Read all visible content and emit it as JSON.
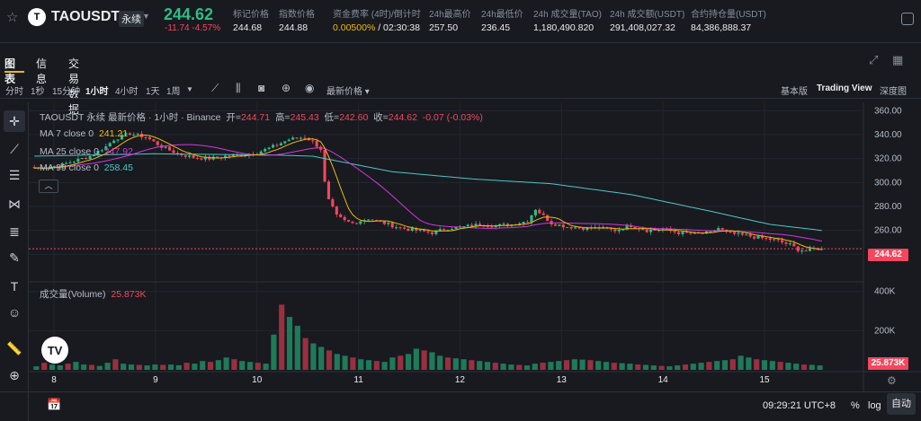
{
  "header": {
    "symbol": "TAOUSDT",
    "contract_type": "永续",
    "logo_letter": "T",
    "last_price": "244.62",
    "change": "-11.74",
    "change_pct": "-4.57%",
    "stats": [
      {
        "label": "标记价格",
        "value": "244.68"
      },
      {
        "label": "指数价格",
        "value": "244.88"
      },
      {
        "label": "资金费率 (4时)/倒计时",
        "value_a": "0.00500%",
        "value_b": " / 02:30:38"
      },
      {
        "label": "24h最高价",
        "value": "257.50"
      },
      {
        "label": "24h最低价",
        "value": "236.45"
      },
      {
        "label": "24h 成交量(TAO)",
        "value": "1,180,490.820"
      },
      {
        "label": "24h 成交额(USDT)",
        "value": "291,408,027.32"
      },
      {
        "label": "合约持仓量(USDT)",
        "value": "84,386,888.37"
      }
    ]
  },
  "tabs": [
    "图表",
    "信息",
    "交易数据"
  ],
  "toolbar": {
    "intervals": [
      "分时",
      "1秒",
      "15分钟",
      "1小时",
      "4小时",
      "1天",
      "1周"
    ],
    "active_interval": "1小时",
    "price_type": "最新价格",
    "views": [
      "基本版",
      "Trading View",
      "深度图"
    ],
    "active_view": "Trading View"
  },
  "legend": {
    "title": "TAOUSDT 永续 最新价格 · 1小时 · Binance",
    "open_label": "开=",
    "open": "244.71",
    "high_label": "高=",
    "high": "245.43",
    "low_label": "低=",
    "low": "242.60",
    "close_label": "收=",
    "close": "244.62",
    "change": "-0.07 (-0.03%)",
    "ma7_label": "MA 7 close 0",
    "ma7": "241.21",
    "ma25_label": "MA 25 close 0",
    "ma25": "247.92",
    "ma99_label": "MA 99 close 0",
    "ma99": "258.45",
    "volume_label": "成交量(Volume)",
    "volume": "25.873K"
  },
  "chart_data": {
    "type": "candlestick",
    "interval": "1小时",
    "x_ticks": [
      "8",
      "9",
      "10",
      "11",
      "12",
      "13",
      "14",
      "15"
    ],
    "price_ticks": [
      "360.00",
      "340.00",
      "320.00",
      "300.00",
      "280.00",
      "260.00",
      "240.00"
    ],
    "volume_ticks": [
      "400K",
      "200K"
    ],
    "ylim": [
      232,
      364
    ],
    "last_price_tag": "244.62",
    "last_volume_tag": "25.873K",
    "colors": {
      "up": "#2ebd85",
      "down": "#f6465d",
      "ma7": "#f0b90b",
      "ma25": "#d138dc",
      "ma99": "#4fc6c6"
    },
    "close_path": [
      [
        0,
        312
      ],
      [
        6,
        314
      ],
      [
        10,
        318
      ],
      [
        14,
        322
      ],
      [
        18,
        330
      ],
      [
        20,
        336
      ],
      [
        24,
        341
      ],
      [
        28,
        338
      ],
      [
        32,
        330
      ],
      [
        36,
        324
      ],
      [
        40,
        321
      ],
      [
        44,
        320
      ],
      [
        48,
        322
      ],
      [
        52,
        323
      ],
      [
        56,
        325
      ],
      [
        60,
        330
      ],
      [
        64,
        336
      ],
      [
        68,
        338
      ],
      [
        70,
        334
      ],
      [
        72,
        328
      ],
      [
        73,
        300
      ],
      [
        74,
        285
      ],
      [
        76,
        272
      ],
      [
        78,
        268
      ],
      [
        80,
        266
      ],
      [
        84,
        270
      ],
      [
        88,
        266
      ],
      [
        92,
        262
      ],
      [
        96,
        260
      ],
      [
        100,
        258
      ],
      [
        104,
        262
      ],
      [
        108,
        263
      ],
      [
        112,
        265
      ],
      [
        116,
        264
      ],
      [
        120,
        265
      ],
      [
        124,
        268
      ],
      [
        126,
        278
      ],
      [
        128,
        272
      ],
      [
        130,
        266
      ],
      [
        134,
        263
      ],
      [
        138,
        262
      ],
      [
        142,
        262
      ],
      [
        146,
        260
      ],
      [
        150,
        264
      ],
      [
        154,
        260
      ],
      [
        158,
        261
      ],
      [
        162,
        258
      ],
      [
        166,
        257
      ],
      [
        170,
        258
      ],
      [
        172,
        262
      ],
      [
        174,
        258
      ],
      [
        178,
        256
      ],
      [
        182,
        254
      ],
      [
        186,
        252
      ],
      [
        190,
        248
      ],
      [
        192,
        244
      ],
      [
        194,
        243
      ],
      [
        196,
        245
      ],
      [
        198,
        244.62
      ]
    ],
    "ma99_path": [
      [
        0,
        322
      ],
      [
        30,
        324
      ],
      [
        60,
        323
      ],
      [
        70,
        322
      ],
      [
        90,
        309
      ],
      [
        110,
        303
      ],
      [
        130,
        299
      ],
      [
        150,
        290
      ],
      [
        170,
        276
      ],
      [
        185,
        265
      ],
      [
        198,
        260
      ]
    ],
    "volume": [
      [
        20,
        15
      ],
      [
        40,
        35
      ],
      [
        30,
        20
      ],
      [
        25,
        18
      ],
      [
        35,
        22
      ],
      [
        45,
        30
      ],
      [
        30,
        20
      ],
      [
        28,
        18
      ],
      [
        22,
        15
      ],
      [
        40,
        28
      ],
      [
        60,
        30
      ],
      [
        35,
        20
      ],
      [
        30,
        18
      ],
      [
        28,
        16
      ],
      [
        25,
        15
      ],
      [
        30,
        20
      ],
      [
        28,
        18
      ],
      [
        30,
        20
      ],
      [
        26,
        18
      ],
      [
        40,
        30
      ],
      [
        35,
        25
      ],
      [
        50,
        35
      ],
      [
        45,
        28
      ],
      [
        55,
        40
      ],
      [
        70,
        45
      ],
      [
        60,
        40
      ],
      [
        50,
        35
      ],
      [
        45,
        30
      ],
      [
        40,
        25
      ],
      [
        35,
        22
      ],
      [
        200,
        320
      ],
      [
        370,
        420
      ],
      [
        300,
        280
      ],
      [
        250,
        200
      ],
      [
        180,
        150
      ],
      [
        150,
        120
      ],
      [
        130,
        100
      ],
      [
        110,
        80
      ],
      [
        90,
        70
      ],
      [
        80,
        60
      ],
      [
        70,
        50
      ],
      [
        60,
        45
      ],
      [
        55,
        40
      ],
      [
        50,
        35
      ],
      [
        45,
        30
      ],
      [
        70,
        50
      ],
      [
        80,
        60
      ],
      [
        90,
        65
      ],
      [
        120,
        85
      ],
      [
        110,
        80
      ],
      [
        100,
        70
      ],
      [
        80,
        60
      ],
      [
        70,
        50
      ],
      [
        65,
        45
      ],
      [
        60,
        40
      ],
      [
        55,
        38
      ],
      [
        50,
        35
      ],
      [
        45,
        30
      ],
      [
        40,
        28
      ],
      [
        35,
        25
      ],
      [
        30,
        22
      ],
      [
        28,
        20
      ],
      [
        25,
        18
      ],
      [
        35,
        25
      ],
      [
        40,
        28
      ],
      [
        45,
        30
      ],
      [
        50,
        35
      ],
      [
        55,
        40
      ],
      [
        60,
        42
      ],
      [
        58,
        40
      ],
      [
        55,
        38
      ],
      [
        50,
        35
      ],
      [
        45,
        32
      ],
      [
        40,
        28
      ],
      [
        38,
        26
      ],
      [
        35,
        25
      ],
      [
        30,
        22
      ],
      [
        28,
        20
      ],
      [
        25,
        18
      ],
      [
        22,
        16
      ],
      [
        20,
        15
      ],
      [
        25,
        18
      ],
      [
        30,
        20
      ],
      [
        35,
        25
      ],
      [
        40,
        28
      ],
      [
        45,
        30
      ],
      [
        50,
        35
      ],
      [
        55,
        38
      ],
      [
        60,
        40
      ],
      [
        80,
        55
      ],
      [
        70,
        50
      ],
      [
        60,
        45
      ],
      [
        55,
        40
      ],
      [
        50,
        35
      ],
      [
        45,
        32
      ],
      [
        40,
        28
      ],
      [
        35,
        25
      ],
      [
        30,
        22
      ],
      [
        28,
        20
      ],
      [
        25,
        18
      ]
    ]
  },
  "bottom": {
    "clock": "09:29:21 UTC+8",
    "pct": "%",
    "log": "log",
    "auto": "自动"
  }
}
